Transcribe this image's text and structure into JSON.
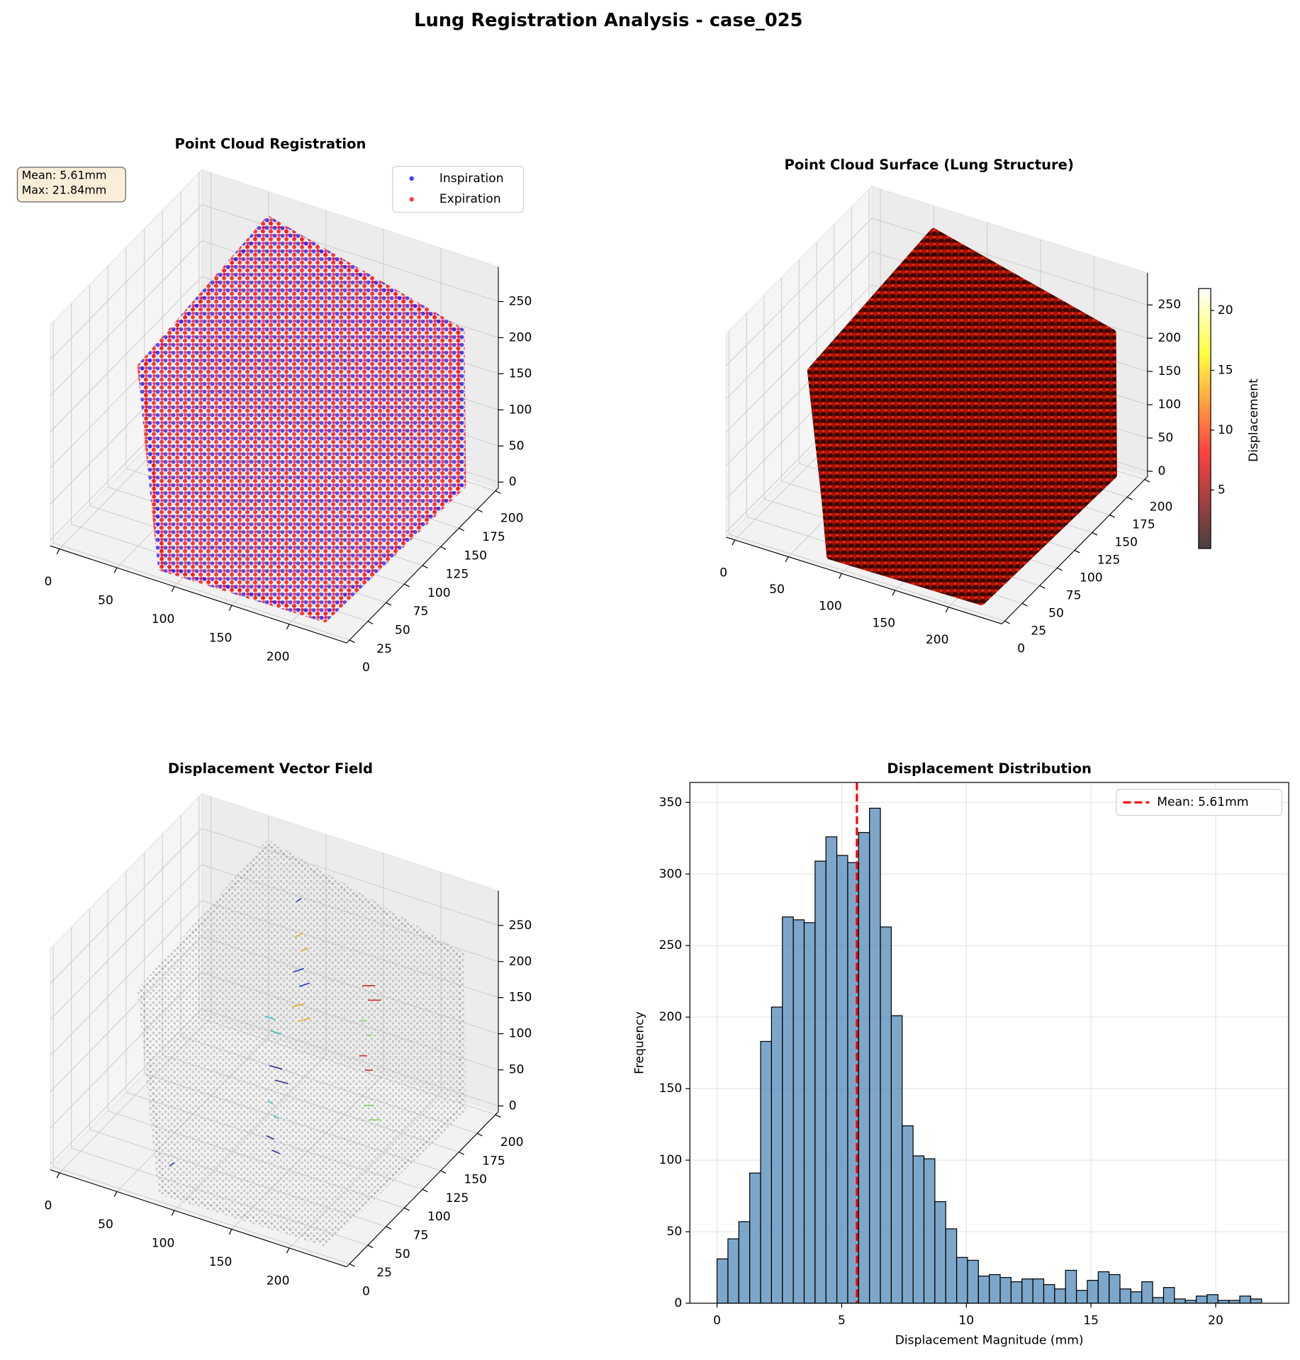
{
  "title": "Lung Registration Analysis - case_025",
  "chart_data": [
    {
      "type": "scatter3d",
      "title": "Point Cloud Registration",
      "series": [
        {
          "name": "Inspiration",
          "color": "#0000ff"
        },
        {
          "name": "Expiration",
          "color": "#ff0000"
        }
      ],
      "legend": "upper right",
      "annotation": [
        "Mean: 5.61mm",
        "Max: 21.84mm"
      ],
      "xlim": [
        -8,
        250
      ],
      "ylim": [
        -4,
        204
      ],
      "zlim": [
        -8,
        298
      ],
      "xticks": [
        0,
        50,
        100,
        150,
        200
      ],
      "yticks": [
        0,
        25,
        50,
        75,
        100,
        125,
        150,
        175,
        200
      ],
      "zticks": [
        0,
        50,
        100,
        150,
        200,
        250
      ]
    },
    {
      "type": "scatter3d",
      "title": "Point Cloud Surface (Lung Structure)",
      "colorbar": {
        "label": "Displacement",
        "colormap": "hot",
        "clim": [
          0.1,
          21.84
        ],
        "ticks": [
          5,
          10,
          15,
          20
        ]
      },
      "xlim": [
        -8,
        250
      ],
      "ylim": [
        -4,
        204
      ],
      "zlim": [
        -8,
        298
      ],
      "xticks": [
        0,
        50,
        100,
        150,
        200
      ],
      "yticks": [
        0,
        25,
        50,
        75,
        100,
        125,
        150,
        175,
        200
      ],
      "zticks": [
        0,
        50,
        100,
        150,
        200,
        250
      ]
    },
    {
      "type": "quiver3d",
      "title": "Displacement Vector Field",
      "xlim": [
        -8,
        250
      ],
      "ylim": [
        -4,
        204
      ],
      "zlim": [
        -8,
        298
      ],
      "xticks": [
        0,
        50,
        100,
        150,
        200
      ],
      "yticks": [
        0,
        25,
        50,
        75,
        100,
        125,
        150,
        175,
        200
      ],
      "zticks": [
        0,
        50,
        100,
        150,
        200,
        250
      ]
    },
    {
      "type": "histogram",
      "title": "Displacement Distribution",
      "xlabel": "Displacement Magnitude (mm)",
      "ylabel": "Frequency",
      "bins": [
        0,
        0.4368,
        0.8736,
        1.3104,
        1.7472,
        2.184,
        2.6208,
        3.0576,
        3.4944,
        3.9312,
        4.368,
        4.8048,
        5.2416,
        5.6784,
        6.1152,
        6.552,
        6.9888,
        7.4256,
        7.8624,
        8.2992,
        8.736,
        9.1728,
        9.6096,
        10.0464,
        10.4832,
        10.92,
        11.3568,
        11.7936,
        12.2304,
        12.6672,
        13.104,
        13.5408,
        13.9776,
        14.4144,
        14.8512,
        15.288,
        15.7248,
        16.1616,
        16.5984,
        17.0352,
        17.472,
        17.9088,
        18.3456,
        18.7824,
        19.2192,
        19.656,
        20.0928,
        20.5296,
        20.9664,
        21.4032,
        21.84
      ],
      "counts": [
        31,
        45,
        57,
        91,
        183,
        207,
        270,
        268,
        266,
        309,
        326,
        313,
        308,
        329,
        346,
        263,
        201,
        124,
        103,
        101,
        71,
        52,
        32,
        30,
        19,
        20,
        18,
        15,
        17,
        17,
        13,
        10,
        23,
        9,
        16,
        22,
        20,
        10,
        8,
        15,
        4,
        11,
        3,
        2,
        5,
        6,
        2,
        2,
        5,
        3
      ],
      "color": "#4682b4",
      "alpha": 0.7,
      "edgecolor": "#000000",
      "mean_line": {
        "value": 5.61,
        "label": "Mean: 5.61mm",
        "color": "#ff0000"
      },
      "legend": "upper right",
      "xlim": [
        -1.09,
        22.93
      ],
      "ylim": [
        0,
        364
      ],
      "xticks": [
        0,
        5,
        10,
        15,
        20
      ],
      "yticks": [
        0,
        50,
        100,
        150,
        200,
        250,
        300,
        350
      ],
      "grid": true
    }
  ]
}
